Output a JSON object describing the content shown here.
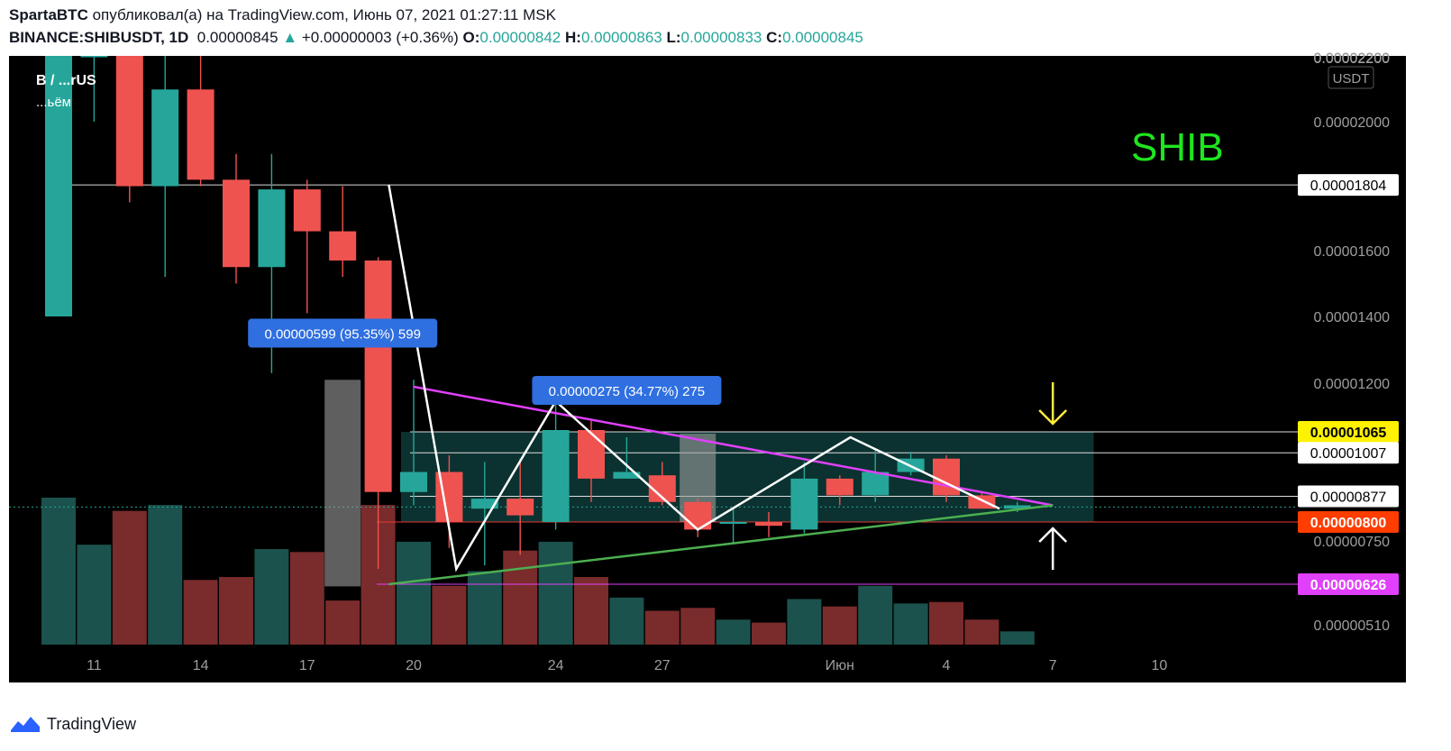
{
  "header": {
    "author": "SpartaBTC",
    "published_text": "опубликовал(а) на TradingView.com, Июнь 07, 2021 01:27:11 MSK",
    "symbol": "BINANCE:SHIBUSDT, 1D",
    "last": "0.00000845",
    "change": "+0.00000003 (+0.36%)",
    "o_label": "O:",
    "o": "0.00000842",
    "h_label": "H:",
    "h": "0.00000863",
    "l_label": "L:",
    "l": "0.00000833",
    "c_label": "C:",
    "c": "0.00000845"
  },
  "footer": {
    "brand": "TradingView"
  },
  "chart_data": {
    "type": "candlestick",
    "currency_badge": "USDT",
    "watermark": "SHIB",
    "legend_fragment": "B / ...rUS",
    "legend_fragment2": "...ьём",
    "colors": {
      "up": "#26a69a",
      "down": "#ef5350",
      "background": "#000000",
      "pattern": "#ffffff",
      "resistance": "#e040fb",
      "support": "#4caf50",
      "zone": "#0d3b38"
    },
    "y_ticks": [
      {
        "value": 2.2e-05,
        "label": "0.00002200"
      },
      {
        "value": 2e-05,
        "label": "0.00002000"
      },
      {
        "value": 1.6e-05,
        "label": "0.00001600"
      },
      {
        "value": 1.4e-05,
        "label": "0.00001400"
      },
      {
        "value": 1.2e-05,
        "label": "0.00001200"
      },
      {
        "value": 7.5e-06,
        "label": "0.00000750"
      },
      {
        "value": 5.1e-06,
        "label": "0.00000510"
      }
    ],
    "price_labels": [
      {
        "value": 1.804e-05,
        "label": "0.00001804",
        "style": "white"
      },
      {
        "value": 1.065e-05,
        "label": "0.00001065",
        "style": "yellow"
      },
      {
        "value": 1.007e-05,
        "label": "0.00001007",
        "style": "white"
      },
      {
        "value": 8.77e-06,
        "label": "0.00000877",
        "style": "white"
      },
      {
        "value": 8e-06,
        "label": "0.00000800",
        "style": "red"
      },
      {
        "value": 6.26e-06,
        "label": "0.00000626",
        "style": "magenta"
      }
    ],
    "x_ticks": [
      {
        "index": 1,
        "label": "11"
      },
      {
        "index": 4,
        "label": "14"
      },
      {
        "index": 7,
        "label": "17"
      },
      {
        "index": 10,
        "label": "20"
      },
      {
        "index": 14,
        "label": "24"
      },
      {
        "index": 17,
        "label": "27"
      },
      {
        "index": 22,
        "label": "Июн"
      },
      {
        "index": 25,
        "label": "4"
      },
      {
        "index": 28,
        "label": "7"
      },
      {
        "index": 31,
        "label": "10"
      }
    ],
    "candles": [
      {
        "o": 1.4e-05,
        "h": 2.35e-05,
        "l": 1.4e-05,
        "c": 2.35e-05,
        "v": 1.0
      },
      {
        "o": 2.2e-05,
        "h": 2.4e-05,
        "l": 2e-05,
        "c": 2.25e-05,
        "v": 0.68
      },
      {
        "o": 2.3e-05,
        "h": 2.4e-05,
        "l": 1.75e-05,
        "c": 1.8e-05,
        "v": 0.91
      },
      {
        "o": 1.8e-05,
        "h": 2.22e-05,
        "l": 1.52e-05,
        "c": 2.1e-05,
        "v": 0.95
      },
      {
        "o": 2.1e-05,
        "h": 2.22e-05,
        "l": 1.8e-05,
        "c": 1.82e-05,
        "v": 0.44
      },
      {
        "o": 1.82e-05,
        "h": 1.9e-05,
        "l": 1.5e-05,
        "c": 1.55e-05,
        "v": 0.46
      },
      {
        "o": 1.55e-05,
        "h": 1.9e-05,
        "l": 1.23e-05,
        "c": 1.79e-05,
        "v": 0.65
      },
      {
        "o": 1.79e-05,
        "h": 1.82e-05,
        "l": 1.41e-05,
        "c": 1.66e-05,
        "v": 0.63
      },
      {
        "o": 1.66e-05,
        "h": 1.8e-05,
        "l": 1.52e-05,
        "c": 1.57e-05,
        "v": 0.3
      },
      {
        "o": 1.57e-05,
        "h": 1.58e-05,
        "l": 6.7e-06,
        "c": 8.9e-06,
        "v": 0.95
      },
      {
        "o": 8.9e-06,
        "h": 1.21e-05,
        "l": 8.5e-06,
        "c": 9.5e-06,
        "v": 0.7
      },
      {
        "o": 9.5e-06,
        "h": 1e-05,
        "l": 7.3e-06,
        "c": 8e-06,
        "v": 0.4
      },
      {
        "o": 8.4e-06,
        "h": 9.8e-06,
        "l": 6.8e-06,
        "c": 8.7e-06,
        "v": 0.5
      },
      {
        "o": 8.7e-06,
        "h": 9.9e-06,
        "l": 7.1e-06,
        "c": 8.2e-06,
        "v": 0.64
      },
      {
        "o": 8e-06,
        "h": 1.21e-05,
        "l": 7.8e-06,
        "c": 1.07e-05,
        "v": 0.7
      },
      {
        "o": 1.07e-05,
        "h": 1.1e-05,
        "l": 8.6e-06,
        "c": 9.3e-06,
        "v": 0.46
      },
      {
        "o": 9.3e-06,
        "h": 1.05e-05,
        "l": 9.3e-06,
        "c": 9.5e-06,
        "v": 0.32
      },
      {
        "o": 9.4e-06,
        "h": 9.8e-06,
        "l": 8.5e-06,
        "c": 8.6e-06,
        "v": 0.23
      },
      {
        "o": 8.6e-06,
        "h": 8.7e-06,
        "l": 7.6e-06,
        "c": 7.8e-06,
        "v": 0.25
      },
      {
        "o": 8e-06,
        "h": 8.4e-06,
        "l": 7.4e-06,
        "c": 8e-06,
        "v": 0.17
      },
      {
        "o": 8e-06,
        "h": 8.3e-06,
        "l": 7.6e-06,
        "c": 7.9e-06,
        "v": 0.15
      },
      {
        "o": 7.8e-06,
        "h": 9.8e-06,
        "l": 7.7e-06,
        "c": 9.3e-06,
        "v": 0.31
      },
      {
        "o": 9.3e-06,
        "h": 9.4e-06,
        "l": 8.5e-06,
        "c": 8.8e-06,
        "v": 0.26
      },
      {
        "o": 8.8e-06,
        "h": 1.02e-05,
        "l": 8.6e-06,
        "c": 9.5e-06,
        "v": 0.4
      },
      {
        "o": 9.5e-06,
        "h": 1.01e-05,
        "l": 9.4e-06,
        "c": 9.9e-06,
        "v": 0.28
      },
      {
        "o": 9.9e-06,
        "h": 1e-05,
        "l": 8.6e-06,
        "c": 8.8e-06,
        "v": 0.29
      },
      {
        "o": 8.8e-06,
        "h": 8.9e-06,
        "l": 8.4e-06,
        "c": 8.4e-06,
        "v": 0.17
      },
      {
        "o": 8.4e-06,
        "h": 8.6e-06,
        "l": 8.3e-06,
        "c": 8.5e-06,
        "v": 0.09
      }
    ],
    "pattern_zigzag": [
      {
        "index": 9.3,
        "price": 1.804e-05
      },
      {
        "index": 11.2,
        "price": 6.7e-06
      },
      {
        "index": 14.0,
        "price": 1.15e-05
      },
      {
        "index": 18.0,
        "price": 7.8e-06
      },
      {
        "index": 22.3,
        "price": 1.05e-05
      },
      {
        "index": 26.5,
        "price": 8.4e-06
      }
    ],
    "resistance_line": [
      {
        "index": 10.0,
        "price": 1.19e-05
      },
      {
        "index": 28.0,
        "price": 8.5e-06
      }
    ],
    "support_line": [
      {
        "index": 9.3,
        "price": 6.26e-06
      },
      {
        "index": 28.0,
        "price": 8.5e-06
      }
    ],
    "zone": {
      "from_index": 10.0,
      "to_index": 29.0,
      "top": 1.065e-05,
      "bottom": 8e-06
    },
    "measure_boxes": [
      {
        "index": 8,
        "top": 1.21e-05,
        "bottom": 6.2e-06
      },
      {
        "index": 18,
        "top": 1.06e-05,
        "bottom": 8e-06
      }
    ],
    "measure_labels": [
      {
        "text": "0.00000599 (95.35%) 599",
        "index": 8,
        "price": 1.35e-05
      },
      {
        "text": "0.00000275 (34.77%) 275",
        "index": 16,
        "price": 1.18e-05
      }
    ],
    "arrows": [
      {
        "direction": "down",
        "index": 28,
        "color": "#ffeb3b"
      },
      {
        "direction": "up",
        "index": 28,
        "color": "#ffffff"
      }
    ]
  }
}
